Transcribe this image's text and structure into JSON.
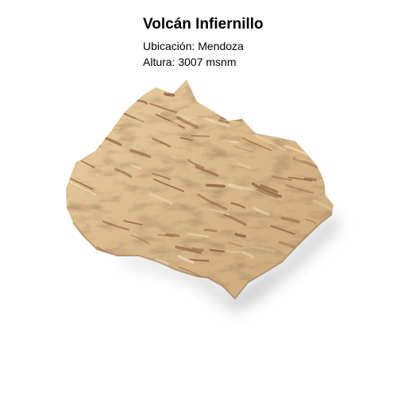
{
  "header": {
    "title": "Volcán Infiernillo",
    "location": "Ubicación: Mendoza",
    "altitude": "Altura: 3007 msnm"
  },
  "relief": {
    "light_color": "#f0d9b0",
    "mid_color": "#d2b48c",
    "dark_color": "#8a5a3a",
    "shadow_color": "#b9b9b9"
  }
}
